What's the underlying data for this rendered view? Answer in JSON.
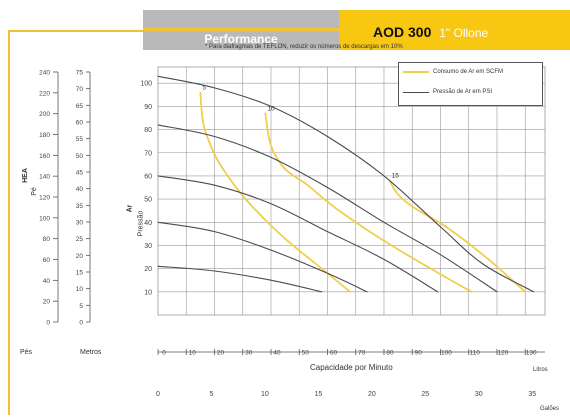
{
  "header": {
    "section": "Performance",
    "model": "AOD 300",
    "model_sub": "1\" Ollone"
  },
  "note": "* Para diafragmas de TEFLON, reduzir os números de descargas em 10%",
  "legend": {
    "air": "Consumo de Ar em SCFM",
    "pressure": "Pressão de Ar em PSI"
  },
  "labels": {
    "left_unit_ft": "Pés",
    "left_unit_m": "Metros",
    "left_axis": "HEA",
    "left_axis_2": "Pé",
    "y_axis": "Ar",
    "y_axis_2": "Pressão",
    "x_title": "Capacidade por Minuto",
    "x_unit_1": "Litros",
    "x_unit_2": "Galões"
  },
  "colors": {
    "header_yellow": "#f7c712",
    "header_gray": "#b9b9b9",
    "air_curve": "#f0cf4a",
    "pressure_curve": "#4a4a55",
    "grid": "#9a9a9a"
  },
  "chart_data": {
    "type": "line",
    "title": "",
    "xlabel": "Capacidade por Minuto",
    "ylabel": "Ar Pressão",
    "x": {
      "range": [
        0,
        137
      ],
      "ticks": [
        0,
        10,
        20,
        30,
        40,
        50,
        60,
        70,
        80,
        90,
        100,
        110,
        120,
        130
      ],
      "tick_labels": [
        "0",
        "10",
        "20",
        "30",
        "40",
        "50",
        "60",
        "70",
        "80",
        "90",
        "100",
        "110",
        "120",
        "130"
      ],
      "unit": "Litros"
    },
    "x2": {
      "ticks": [
        0,
        5,
        10,
        15,
        20,
        25,
        30,
        35
      ],
      "tick_labels": [
        "0",
        "5",
        "10",
        "15",
        "20",
        "25",
        "30",
        "35"
      ],
      "unit": "Galões"
    },
    "y": {
      "range": [
        0,
        107
      ],
      "tick_labels": [
        "10",
        "20",
        "30",
        "40",
        "50",
        "60",
        "70",
        "80",
        "90",
        "100"
      ],
      "grid": true
    },
    "left_scale_ft": [
      "240",
      "220",
      "200",
      "180",
      "160",
      "140",
      "120",
      "100",
      "80",
      "60",
      "40",
      "20",
      "0"
    ],
    "left_scale_m": [
      "75",
      "70",
      "65",
      "60",
      "55",
      "50",
      "45",
      "40",
      "35",
      "30",
      "25",
      "20",
      "15",
      "10",
      "5",
      "0"
    ],
    "series": [
      {
        "name": "Consumo de Ar em SCFM",
        "kind": "air",
        "label": "5",
        "points": [
          [
            15,
            96
          ],
          [
            16,
            83
          ],
          [
            19,
            72
          ],
          [
            23,
            63
          ],
          [
            31,
            50
          ],
          [
            44,
            34
          ],
          [
            58,
            20
          ],
          [
            68,
            10
          ]
        ]
      },
      {
        "name": "Consumo de Ar em SCFM",
        "kind": "air",
        "label": "10",
        "points": [
          [
            38,
            87
          ],
          [
            40,
            73
          ],
          [
            45,
            63
          ],
          [
            53,
            56
          ],
          [
            63,
            46
          ],
          [
            80,
            32
          ],
          [
            98,
            19
          ],
          [
            111,
            10
          ]
        ]
      },
      {
        "name": "Consumo de Ar em SCFM",
        "kind": "air",
        "label": "15",
        "points": [
          [
            82,
            58
          ],
          [
            85,
            52
          ],
          [
            91,
            46
          ],
          [
            102,
            38
          ],
          [
            116,
            25
          ],
          [
            130,
            10
          ]
        ]
      },
      {
        "name": "Pressão de Ar em PSI",
        "kind": "pressure",
        "points": [
          [
            0,
            103
          ],
          [
            20,
            98
          ],
          [
            40,
            90
          ],
          [
            60,
            77
          ],
          [
            80,
            60
          ],
          [
            100,
            38
          ],
          [
            115,
            22
          ],
          [
            133,
            10
          ]
        ]
      },
      {
        "name": "Pressão de Ar em PSI",
        "kind": "pressure",
        "points": [
          [
            0,
            82
          ],
          [
            20,
            77
          ],
          [
            40,
            68
          ],
          [
            60,
            55
          ],
          [
            80,
            40
          ],
          [
            100,
            26
          ],
          [
            120,
            10
          ]
        ]
      },
      {
        "name": "Pressão de Ar em PSI",
        "kind": "pressure",
        "points": [
          [
            0,
            60
          ],
          [
            20,
            56
          ],
          [
            40,
            48
          ],
          [
            60,
            36
          ],
          [
            80,
            24
          ],
          [
            99,
            10
          ]
        ]
      },
      {
        "name": "Pressão de Ar em PSI",
        "kind": "pressure",
        "points": [
          [
            0,
            40
          ],
          [
            20,
            36
          ],
          [
            40,
            28
          ],
          [
            60,
            18
          ],
          [
            74,
            10
          ]
        ]
      },
      {
        "name": "Pressão de Ar em PSI",
        "kind": "pressure",
        "points": [
          [
            0,
            21
          ],
          [
            20,
            19
          ],
          [
            40,
            15
          ],
          [
            58,
            10
          ]
        ]
      }
    ]
  }
}
